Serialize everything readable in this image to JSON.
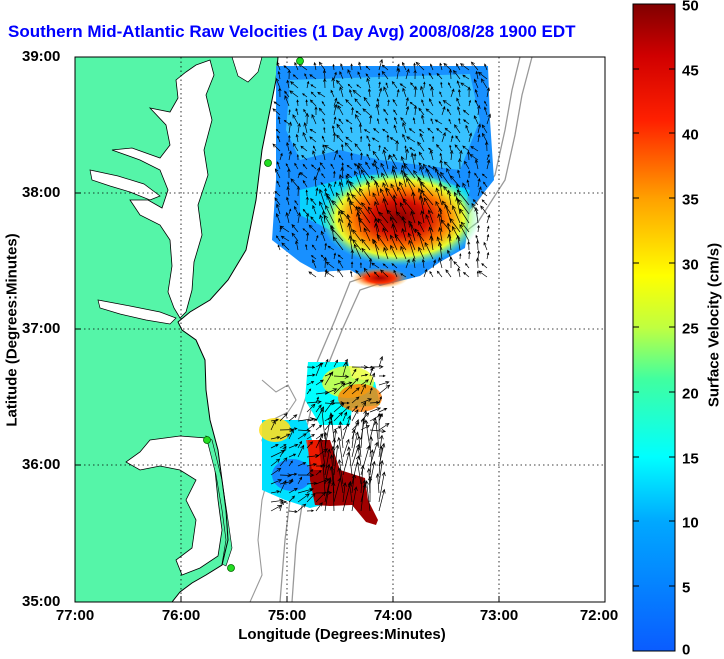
{
  "title": "Southern Mid-Atlantic Raw Velocities (1 Day Avg) 2008/08/28 1900 EDT",
  "axes": {
    "xlabel": "Longitude (Degrees:Minutes)",
    "ylabel": "Latitude (Degrees:Minutes)",
    "x_ticks": [
      "77:00",
      "76:00",
      "75:00",
      "74:00",
      "73:00",
      "72:00"
    ],
    "y_ticks": [
      "39:00",
      "38:00",
      "37:00",
      "36:00",
      "35:00"
    ]
  },
  "colorbar": {
    "label": "Surface Velocity (cm/s)",
    "ticks": [
      "50",
      "45",
      "40",
      "35",
      "30",
      "25",
      "20",
      "15",
      "10",
      "5",
      "0"
    ],
    "range": [
      0,
      50
    ],
    "colors": {
      "low": "#1060ff",
      "mid": "#00ffff",
      "yellow": "#ffff00",
      "high": "#8b0000"
    }
  },
  "map": {
    "land_color": "#55f5a8",
    "water_color": "#ffffff",
    "grid": true
  }
}
